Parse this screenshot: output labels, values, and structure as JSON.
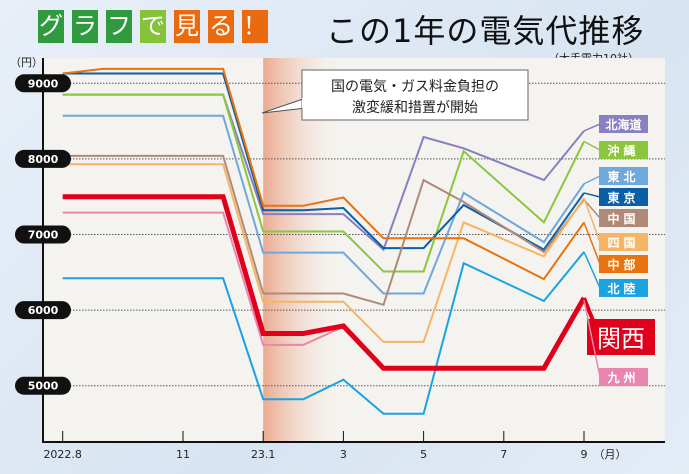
{
  "title_badges": [
    {
      "text": "グ",
      "color": "#2f9a3e"
    },
    {
      "text": "ラ",
      "color": "#2f9a3e"
    },
    {
      "text": "フ",
      "color": "#2f9a3e"
    },
    {
      "text": "で",
      "color": "#86c23a"
    },
    {
      "text": "見",
      "color": "#ea6a10"
    },
    {
      "text": "る",
      "color": "#ea6a10"
    },
    {
      "text": "！",
      "color": "#ea6a10"
    }
  ],
  "title": "この1年の電気代推移",
  "subtitle": "（大手電力10社）",
  "callout": {
    "line1": "国の電気・ガス料金負担の",
    "line2": "激変緩和措置が開始"
  },
  "chart_data": {
    "type": "line",
    "ylabel": "（円）",
    "xlabel": "（月）",
    "ylim": [
      4200,
      9400
    ],
    "yticks": [
      9000,
      8000,
      7000,
      6000,
      5000
    ],
    "xlim": [
      "2022-07-06",
      "2023-10-15"
    ],
    "xticks": [
      {
        "date": "2022-08",
        "label": "2022.8"
      },
      {
        "date": "2022-11",
        "label": "11"
      },
      {
        "date": "2023-01",
        "label": "23.1"
      },
      {
        "date": "2023-03",
        "label": "3"
      },
      {
        "date": "2023-05",
        "label": "5"
      },
      {
        "date": "2023-07",
        "label": "7"
      },
      {
        "date": "2023-09",
        "label": "9"
      }
    ],
    "shaded_period_start": "2023-01",
    "grid": "horizontal dotted",
    "x": [
      "2022-08",
      "2022-09",
      "2022-12",
      "2023-01",
      "2023-02",
      "2023-03",
      "2023-04",
      "2023-05",
      "2023-06",
      "2023-08",
      "2023-09"
    ],
    "series": [
      {
        "name": "北海道",
        "color": "#8a7fc0",
        "values": [
          8850,
          8850,
          8850,
          7270,
          7270,
          7270,
          6800,
          8290,
          8140,
          7720,
          8370
        ]
      },
      {
        "name": "沖縄",
        "color": "#8cc63f",
        "values": [
          8850,
          8850,
          8850,
          7040,
          7040,
          7040,
          6510,
          6510,
          8100,
          7160,
          8230
        ]
      },
      {
        "name": "東北",
        "color": "#6fa8dc",
        "values": [
          8570,
          8570,
          8570,
          6760,
          6760,
          6760,
          6220,
          6220,
          7550,
          6900,
          7670
        ]
      },
      {
        "name": "東京",
        "color": "#0b5fa5",
        "values": [
          9130,
          9130,
          9130,
          7320,
          7320,
          7350,
          6820,
          6820,
          7390,
          6800,
          7550
        ]
      },
      {
        "name": "中国",
        "color": "#b08a78",
        "values": [
          8040,
          8040,
          8040,
          6220,
          6220,
          6220,
          6070,
          7720,
          7430,
          6770,
          7460
        ]
      },
      {
        "name": "四国",
        "color": "#f5b565",
        "values": [
          7930,
          7930,
          7930,
          6110,
          6110,
          6110,
          5580,
          5580,
          7160,
          6710,
          7480
        ]
      },
      {
        "name": "中部",
        "color": "#e8730f",
        "values": [
          9130,
          9190,
          9190,
          7380,
          7380,
          7490,
          6950,
          6950,
          6950,
          6410,
          7160
        ]
      },
      {
        "name": "北陸",
        "color": "#1aa3e0",
        "values": [
          6420,
          6420,
          6420,
          4820,
          4820,
          5080,
          4630,
          4630,
          6620,
          6120,
          6770
        ]
      },
      {
        "name": "関西",
        "color": "#e0001b",
        "values": [
          7500,
          7500,
          7500,
          5690,
          5690,
          5790,
          5230,
          5230,
          5230,
          5230,
          6160
        ],
        "emphasis": true
      },
      {
        "name": "九州",
        "color": "#e986b0",
        "values": [
          7290,
          7290,
          7290,
          5540,
          5540,
          5780,
          5230,
          5230,
          5230,
          5230,
          6130
        ]
      }
    ]
  }
}
